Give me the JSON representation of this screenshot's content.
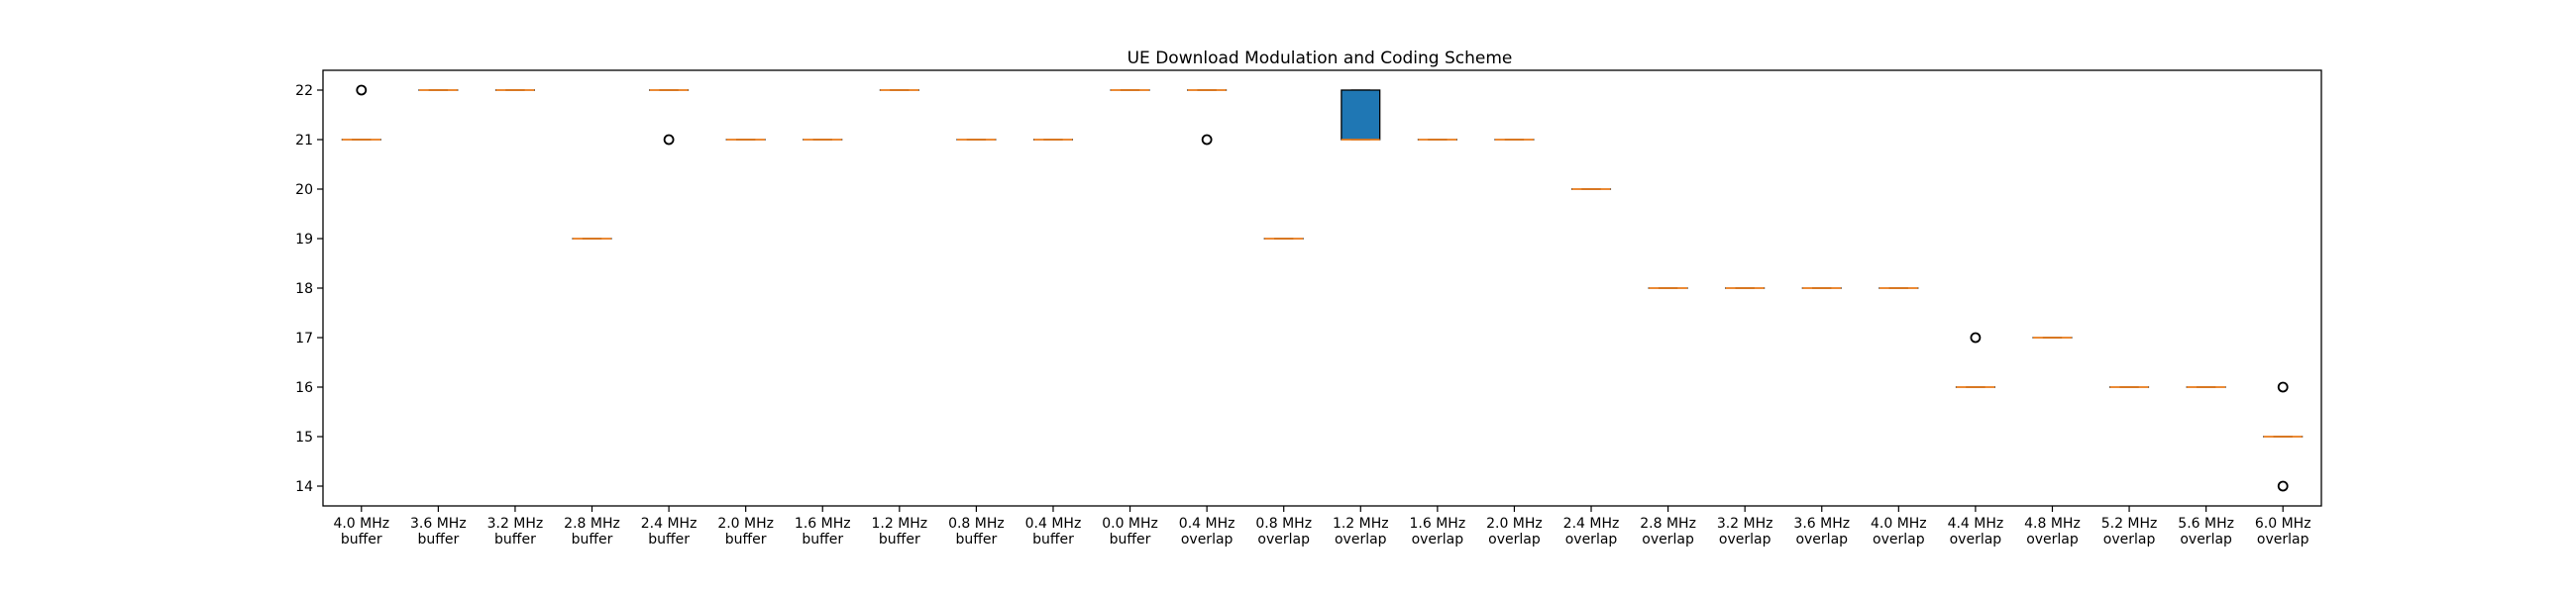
{
  "chart_data": {
    "type": "box",
    "title": "UE Download Modulation and Coding Scheme",
    "xlabel": "",
    "ylabel": "",
    "ylim": [
      13.6,
      22.4
    ],
    "yticks": [
      14,
      15,
      16,
      17,
      18,
      19,
      20,
      21,
      22
    ],
    "grid": false,
    "categories": [
      [
        "4.0 MHz",
        "buffer"
      ],
      [
        "3.6 MHz",
        "buffer"
      ],
      [
        "3.2 MHz",
        "buffer"
      ],
      [
        "2.8 MHz",
        "buffer"
      ],
      [
        "2.4 MHz",
        "buffer"
      ],
      [
        "2.0 MHz",
        "buffer"
      ],
      [
        "1.6 MHz",
        "buffer"
      ],
      [
        "1.2 MHz",
        "buffer"
      ],
      [
        "0.8 MHz",
        "buffer"
      ],
      [
        "0.4 MHz",
        "buffer"
      ],
      [
        "0.0 MHz",
        "buffer"
      ],
      [
        "0.4 MHz",
        "overlap"
      ],
      [
        "0.8 MHz",
        "overlap"
      ],
      [
        "1.2 MHz",
        "overlap"
      ],
      [
        "1.6 MHz",
        "overlap"
      ],
      [
        "2.0 MHz",
        "overlap"
      ],
      [
        "2.4 MHz",
        "overlap"
      ],
      [
        "2.8 MHz",
        "overlap"
      ],
      [
        "3.2 MHz",
        "overlap"
      ],
      [
        "3.6 MHz",
        "overlap"
      ],
      [
        "4.0 MHz",
        "overlap"
      ],
      [
        "4.4 MHz",
        "overlap"
      ],
      [
        "4.8 MHz",
        "overlap"
      ],
      [
        "5.2 MHz",
        "overlap"
      ],
      [
        "5.6 MHz",
        "overlap"
      ],
      [
        "6.0 MHz",
        "overlap"
      ]
    ],
    "boxes": [
      {
        "q1": 21,
        "median": 21,
        "q3": 21,
        "whislo": 21,
        "whishi": 21,
        "fliers": [
          22
        ]
      },
      {
        "q1": 22,
        "median": 22,
        "q3": 22,
        "whislo": 22,
        "whishi": 22,
        "fliers": []
      },
      {
        "q1": 22,
        "median": 22,
        "q3": 22,
        "whislo": 22,
        "whishi": 22,
        "fliers": []
      },
      {
        "q1": 19,
        "median": 19,
        "q3": 19,
        "whislo": 19,
        "whishi": 19,
        "fliers": []
      },
      {
        "q1": 22,
        "median": 22,
        "q3": 22,
        "whislo": 22,
        "whishi": 22,
        "fliers": [
          21
        ]
      },
      {
        "q1": 21,
        "median": 21,
        "q3": 21,
        "whislo": 21,
        "whishi": 21,
        "fliers": []
      },
      {
        "q1": 21,
        "median": 21,
        "q3": 21,
        "whislo": 21,
        "whishi": 21,
        "fliers": []
      },
      {
        "q1": 22,
        "median": 22,
        "q3": 22,
        "whislo": 22,
        "whishi": 22,
        "fliers": []
      },
      {
        "q1": 21,
        "median": 21,
        "q3": 21,
        "whislo": 21,
        "whishi": 21,
        "fliers": []
      },
      {
        "q1": 21,
        "median": 21,
        "q3": 21,
        "whislo": 21,
        "whishi": 21,
        "fliers": []
      },
      {
        "q1": 22,
        "median": 22,
        "q3": 22,
        "whislo": 22,
        "whishi": 22,
        "fliers": []
      },
      {
        "q1": 22,
        "median": 22,
        "q3": 22,
        "whislo": 22,
        "whishi": 22,
        "fliers": [
          21
        ]
      },
      {
        "q1": 19,
        "median": 19,
        "q3": 19,
        "whislo": 19,
        "whishi": 19,
        "fliers": []
      },
      {
        "q1": 21,
        "median": 21,
        "q3": 22,
        "whislo": 21,
        "whishi": 22,
        "fliers": []
      },
      {
        "q1": 21,
        "median": 21,
        "q3": 21,
        "whislo": 21,
        "whishi": 21,
        "fliers": []
      },
      {
        "q1": 21,
        "median": 21,
        "q3": 21,
        "whislo": 21,
        "whishi": 21,
        "fliers": []
      },
      {
        "q1": 20,
        "median": 20,
        "q3": 20,
        "whislo": 20,
        "whishi": 20,
        "fliers": []
      },
      {
        "q1": 18,
        "median": 18,
        "q3": 18,
        "whislo": 18,
        "whishi": 18,
        "fliers": []
      },
      {
        "q1": 18,
        "median": 18,
        "q3": 18,
        "whislo": 18,
        "whishi": 18,
        "fliers": []
      },
      {
        "q1": 18,
        "median": 18,
        "q3": 18,
        "whislo": 18,
        "whishi": 18,
        "fliers": []
      },
      {
        "q1": 18,
        "median": 18,
        "q3": 18,
        "whislo": 18,
        "whishi": 18,
        "fliers": []
      },
      {
        "q1": 16,
        "median": 16,
        "q3": 16,
        "whislo": 16,
        "whishi": 16,
        "fliers": [
          17
        ]
      },
      {
        "q1": 17,
        "median": 17,
        "q3": 17,
        "whislo": 17,
        "whishi": 17,
        "fliers": []
      },
      {
        "q1": 16,
        "median": 16,
        "q3": 16,
        "whislo": 16,
        "whishi": 16,
        "fliers": []
      },
      {
        "q1": 16,
        "median": 16,
        "q3": 16,
        "whislo": 16,
        "whishi": 16,
        "fliers": []
      },
      {
        "q1": 15,
        "median": 15,
        "q3": 15,
        "whislo": 15,
        "whishi": 15,
        "fliers": [
          16,
          14
        ]
      }
    ],
    "colors": {
      "box_fill": "#1f77b4",
      "median": "#ff7f0e",
      "frame": "#000000",
      "flier_edge": "#000000"
    }
  }
}
